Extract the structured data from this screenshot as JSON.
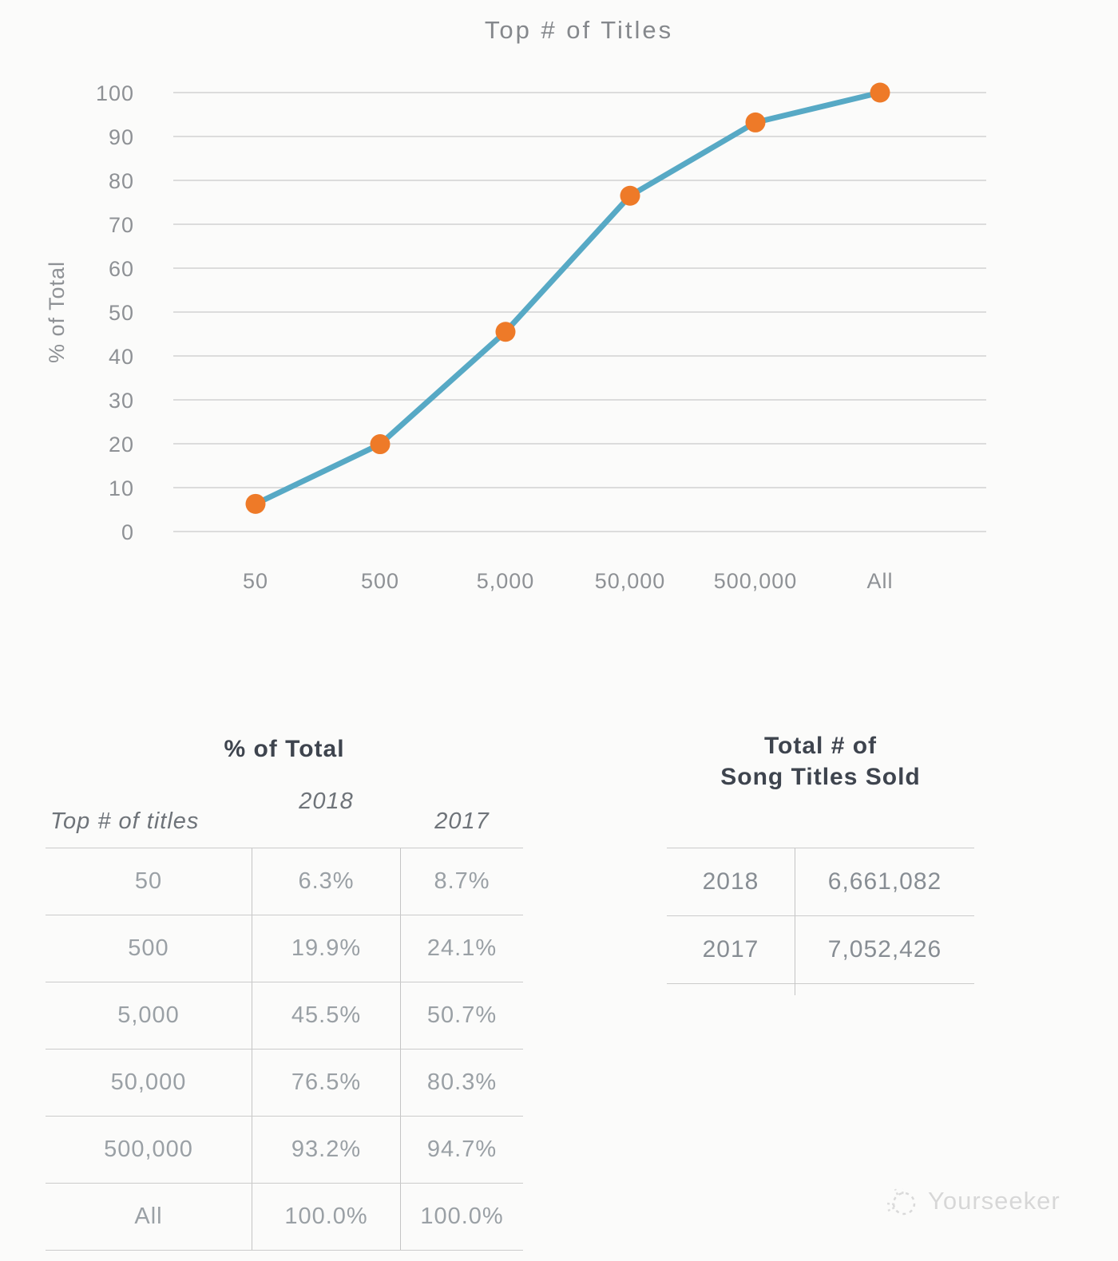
{
  "page": {
    "background": "#fbfbfa"
  },
  "chart_data": {
    "type": "line",
    "title": "Top # of Titles",
    "ylabel": "% of Total",
    "categories": [
      "50",
      "500",
      "5,000",
      "50,000",
      "500,000",
      "All"
    ],
    "series": [
      {
        "name": "2018",
        "values": [
          6.3,
          19.9,
          45.5,
          76.5,
          93.2,
          100.0
        ]
      }
    ],
    "ylim": [
      0,
      100
    ],
    "ytick_step": 10,
    "grid": true,
    "legend_position": "none",
    "line_color": "#57a9c5",
    "marker_color": "#ee7a28",
    "gridline_color": "#d2d2d2"
  },
  "pct_table": {
    "title": "% of Total",
    "columns": [
      "Top # of titles",
      "2018",
      "2017"
    ],
    "rows": [
      [
        "50",
        "6.3%",
        "8.7%"
      ],
      [
        "500",
        "19.9%",
        "24.1%"
      ],
      [
        "5,000",
        "45.5%",
        "50.7%"
      ],
      [
        "50,000",
        "76.5%",
        "80.3%"
      ],
      [
        "500,000",
        "93.2%",
        "94.7%"
      ],
      [
        "All",
        "100.0%",
        "100.0%"
      ]
    ]
  },
  "totals_table": {
    "title_line1": "Total # of",
    "title_line2": "Song Titles Sold",
    "rows": [
      [
        "2018",
        "6,661,082"
      ],
      [
        "2017",
        "7,052,426"
      ]
    ]
  },
  "watermark": {
    "label": "Yourseeker"
  }
}
